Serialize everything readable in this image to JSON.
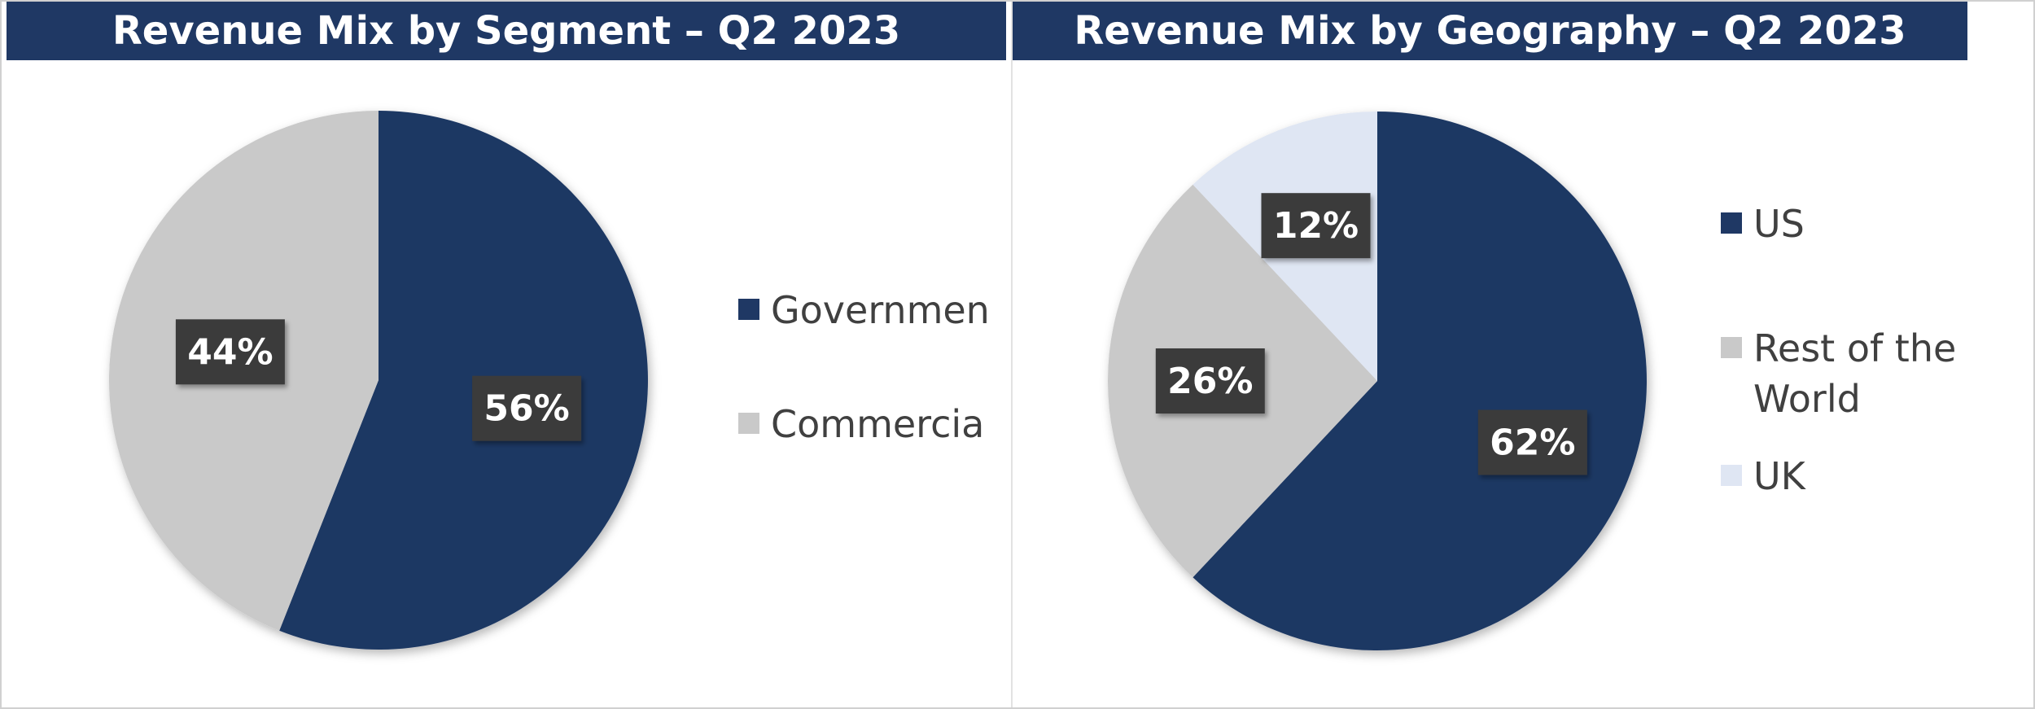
{
  "chart_data": [
    {
      "type": "pie",
      "title": "Revenue Mix by Segment – Q2 2023",
      "categories": [
        "Government",
        "Commercial"
      ],
      "values": [
        56,
        44
      ],
      "data_labels": [
        "56%",
        "44%"
      ],
      "legend_labels": [
        "Governmen",
        "Commercia"
      ],
      "colors": [
        "#1f3864",
        "#c9c9c9"
      ],
      "legend": "right"
    },
    {
      "type": "pie",
      "title": "Revenue Mix by Geography – Q2 2023",
      "categories": [
        "US",
        "Rest of the World",
        "UK"
      ],
      "values": [
        62,
        26,
        12
      ],
      "data_labels": [
        "62%",
        "26%",
        "12%"
      ],
      "legend_labels": [
        "US",
        "Rest of the World",
        "UK"
      ],
      "colors": [
        "#1f3864",
        "#c9c9c9",
        "#dfe6f3"
      ],
      "legend": "right"
    }
  ]
}
